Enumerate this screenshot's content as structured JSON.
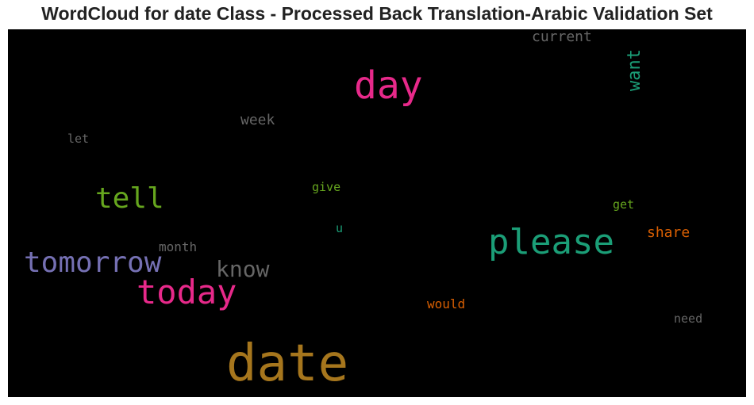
{
  "title": "WordCloud for date Class - Processed Back Translation-Arabic Validation Set",
  "words": {
    "date": {
      "text": "date",
      "color": "#A6761D"
    },
    "day": {
      "text": "day",
      "color": "#E7298A"
    },
    "please": {
      "text": "please",
      "color": "#1B9E77"
    },
    "today": {
      "text": "today",
      "color": "#E7298A"
    },
    "tomorrow": {
      "text": "tomorrow",
      "color": "#7570B3"
    },
    "tell": {
      "text": "tell",
      "color": "#66A61E"
    },
    "know": {
      "text": "know",
      "color": "#666666"
    },
    "want": {
      "text": "want",
      "color": "#1B9E77"
    },
    "current": {
      "text": "current",
      "color": "#666666"
    },
    "week": {
      "text": "week",
      "color": "#666666"
    },
    "share": {
      "text": "share",
      "color": "#D95F02"
    },
    "month": {
      "text": "month",
      "color": "#666666"
    },
    "would": {
      "text": "would",
      "color": "#D95F02"
    },
    "need": {
      "text": "need",
      "color": "#666666"
    },
    "give": {
      "text": "give",
      "color": "#66A61E"
    },
    "get": {
      "text": "get",
      "color": "#66A61E"
    },
    "let": {
      "text": "let",
      "color": "#666666"
    },
    "u": {
      "text": "u",
      "color": "#1B9E77"
    }
  },
  "colors": {
    "background": "#000000",
    "title": "#222222"
  }
}
